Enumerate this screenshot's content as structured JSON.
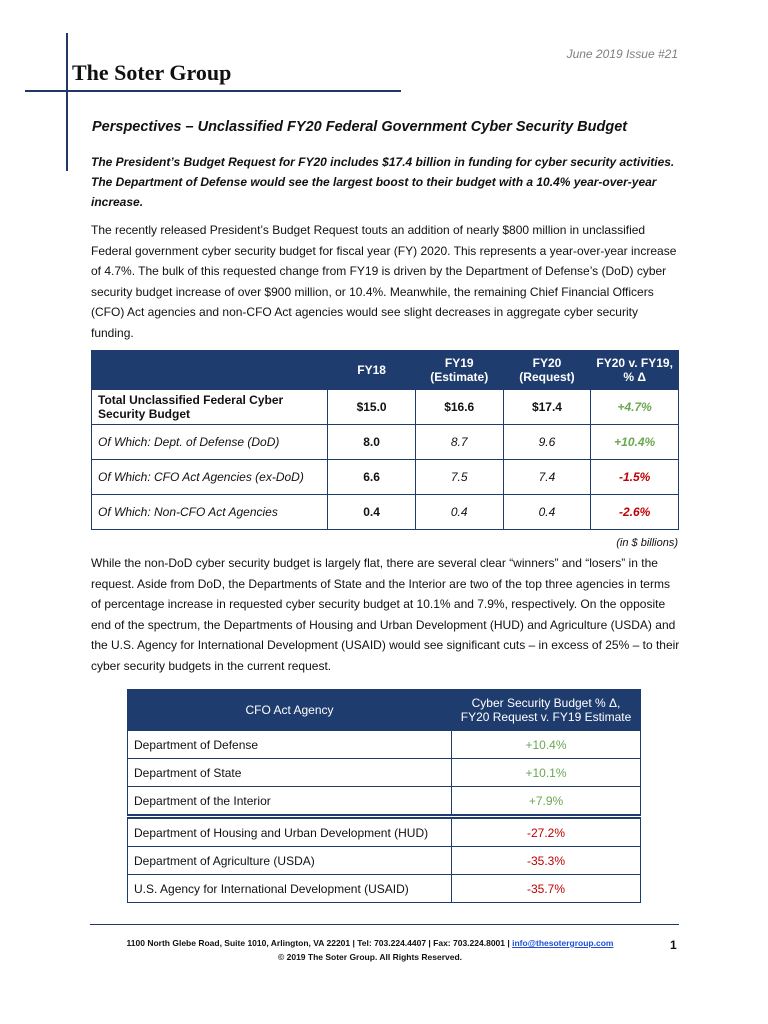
{
  "header": {
    "issue": "June 2019 Issue #21",
    "company": "The Soter Group"
  },
  "title": "Perspectives – Unclassified FY20 Federal Government Cyber Security Budget",
  "summary": "The President’s Budget Request for FY20 includes $17.4 billion in funding for cyber security activities. The Department of Defense would see the largest boost to their budget with a 10.4% year-over-year increase.",
  "paragraphs": [
    "The recently released President’s Budget Request touts an addition of nearly $800 million in unclassified Federal government cyber security budget for fiscal year (FY) 2020.  This represents a year-over-year increase of 4.7%.  The bulk of this requested change from FY19 is driven by the Department of Defense’s (DoD) cyber security budget increase of over $900 million, or 10.4%.  Meanwhile, the remaining Chief Financial Officers (CFO) Act agencies and non-CFO Act agencies would see slight decreases in aggregate cyber security funding.",
    "While the non-DoD cyber security budget is largely flat, there are several clear “winners” and “losers” in the request.  Aside from DoD, the Departments of State and the Interior are two of the top three agencies in terms of percentage increase in requested cyber security budget at 10.1% and 7.9%, respectively.  On the opposite end of the spectrum, the Departments of Housing and Urban Development (HUD) and Agriculture (USDA) and the U.S. Agency for International Development (USAID) would see significant cuts – in excess of 25% – to their cyber security budgets in the current request."
  ],
  "table1": {
    "columns": [
      "FY18",
      "FY19 (Estimate)",
      "FY20 (Request)",
      "FY20 v. FY19, % Δ"
    ],
    "rows": [
      [
        "Total Unclassified Federal Cyber Security Budget",
        "$15.0",
        "$16.6",
        "$17.4",
        "+4.7%"
      ],
      [
        "Of Which: Dept. of Defense (DoD)",
        "8.0",
        "8.7",
        "9.6",
        "+10.4%"
      ],
      [
        "Of Which: CFO Act Agencies (ex-DoD)",
        "6.6",
        "7.5",
        "7.4",
        "-1.5%"
      ],
      [
        "Of Which: Non-CFO Act Agencies",
        "0.4",
        "0.4",
        "0.4",
        "-2.6%"
      ]
    ],
    "note": "(in $ billions)"
  },
  "table2": {
    "columns": [
      "CFO Act Agency",
      "Cyber Security Budget % Δ, FY20 Request v. FY19 Estimate"
    ],
    "rows": [
      [
        "Department of Defense",
        "+10.4%"
      ],
      [
        "Department of State",
        "+10.1%"
      ],
      [
        "Department of the Interior",
        "+7.9%"
      ],
      [
        "Department of Housing and Urban Development (HUD)",
        "-27.2%"
      ],
      [
        "Department of Agriculture (USDA)",
        "-35.3%"
      ],
      [
        "U.S. Agency for International Development (USAID)",
        "-35.7%"
      ]
    ]
  },
  "footer": {
    "address": "1100 North Glebe Road, Suite 1010, Arlington, VA  22201 | Tel: 703.224.4407 | Fax: 703.224.8001 |",
    "email": "info@thesotergroup.com",
    "copyright": "© 2019 The Soter Group. All Rights Reserved.",
    "page": "1"
  }
}
